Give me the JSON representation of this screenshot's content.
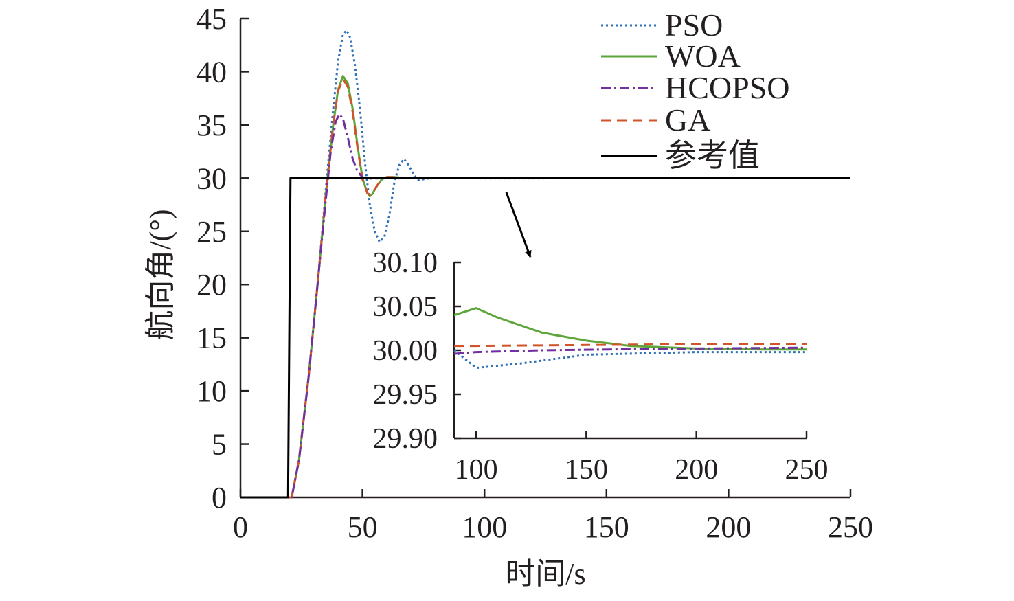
{
  "chart_data": {
    "type": "line",
    "xlabel": "时间/s",
    "ylabel": "航向角/(°)",
    "xlim": [
      0,
      250
    ],
    "ylim": [
      0,
      45
    ],
    "x_ticks": [
      "0",
      "50",
      "100",
      "150",
      "200",
      "250"
    ],
    "y_ticks": [
      "0",
      "5",
      "10",
      "15",
      "20",
      "25",
      "30",
      "35",
      "40",
      "45"
    ],
    "legend": {
      "position": "top-right"
    },
    "series": [
      {
        "name": "PSO",
        "style": "dotted",
        "color": "#2f6fb5",
        "x": [
          0,
          20,
          21,
          24,
          28,
          32,
          35,
          38,
          40,
          42,
          43.5,
          45,
          47,
          49,
          51,
          53,
          55,
          57,
          59,
          61,
          63,
          65,
          67,
          69,
          71,
          73,
          76,
          80,
          90,
          100,
          120,
          150,
          200,
          250
        ],
        "y": [
          0,
          0,
          0,
          3.5,
          11.5,
          21,
          29,
          36.5,
          41,
          43.5,
          43.9,
          43.2,
          40.5,
          36.5,
          31.5,
          27.5,
          25,
          24,
          24.5,
          26.5,
          29.5,
          31.2,
          31.8,
          31.2,
          30.3,
          29.8,
          29.95,
          30.02,
          30,
          29.98,
          29.985,
          29.995,
          29.998,
          29.998
        ]
      },
      {
        "name": "WOA",
        "style": "solid",
        "color": "#5ea63b",
        "x": [
          0,
          20,
          21,
          24,
          28,
          32,
          35,
          38,
          40,
          42,
          44,
          46,
          48,
          50,
          52,
          53,
          54,
          56,
          58,
          60,
          63,
          66,
          70,
          75,
          80,
          90,
          100,
          110,
          130,
          150,
          170,
          200,
          230,
          250
        ],
        "y": [
          0,
          0,
          0,
          3.5,
          11.5,
          21,
          28.5,
          35,
          38.3,
          39.6,
          38.9,
          36.5,
          33,
          30,
          28.6,
          28.3,
          28.5,
          29.3,
          29.9,
          30.1,
          30.1,
          30.05,
          30.03,
          30.03,
          30.03,
          30.04,
          30.048,
          30.037,
          30.02,
          30.011,
          30.005,
          30.002,
          30.001,
          30.001
        ]
      },
      {
        "name": "HCOPSO",
        "style": "dashdot",
        "color": "#7030a0",
        "x": [
          0,
          20,
          21,
          24,
          28,
          32,
          35,
          37,
          39,
          40.5,
          42,
          44,
          46,
          48,
          50,
          52,
          55,
          60,
          70,
          80,
          90,
          100,
          130,
          160,
          200,
          250
        ],
        "y": [
          0,
          0,
          0,
          3.5,
          11.5,
          21,
          28,
          32.5,
          35.3,
          36,
          35.6,
          33.8,
          31.8,
          30.6,
          30.1,
          29.95,
          29.97,
          30,
          30,
          30,
          29.996,
          29.998,
          30,
          30.001,
          30.002,
          30.003
        ]
      },
      {
        "name": "GA",
        "style": "dashed",
        "color": "#d2542a",
        "x": [
          0,
          20,
          21,
          24,
          28,
          32,
          35,
          38,
          40,
          42,
          44,
          46,
          48,
          50,
          52,
          53,
          54,
          56,
          58,
          60,
          63,
          66,
          70,
          80,
          90,
          100,
          150,
          200,
          250
        ],
        "y": [
          0,
          0,
          0,
          3.5,
          11.5,
          21,
          28.5,
          35,
          38.2,
          39.3,
          38.6,
          36.2,
          32.8,
          29.9,
          28.6,
          28.4,
          28.6,
          29.3,
          29.9,
          30.1,
          30.1,
          30.05,
          30.02,
          30.01,
          30.005,
          30.005,
          30.006,
          30.007,
          30.007
        ]
      },
      {
        "name": "参考值",
        "style": "solid",
        "color": "#000000",
        "x": [
          0,
          19.5,
          20.5,
          250
        ],
        "y": [
          0,
          0,
          30,
          30
        ]
      }
    ],
    "inset": {
      "xlim": [
        90,
        250
      ],
      "ylim": [
        29.9,
        30.1
      ],
      "x_ticks": [
        "100",
        "150",
        "200",
        "250"
      ],
      "y_ticks": [
        "30.10",
        "30.05",
        "30.00",
        "29.95",
        "29.90"
      ]
    },
    "annotation": "arrow pointing from main curve to inset"
  }
}
